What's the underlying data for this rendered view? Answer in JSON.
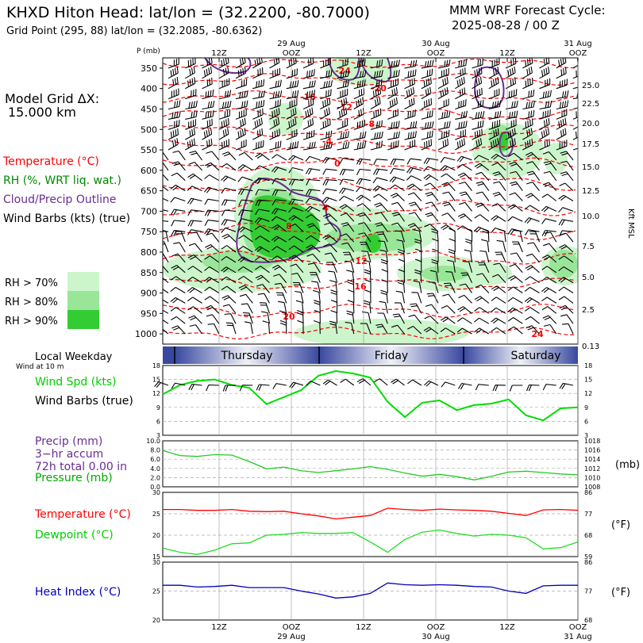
{
  "header": {
    "title": "KHXD Hiton Head:  lat/lon = (32.2200, -80.7000)",
    "subtitle": "Grid Point (295, 88) lat/lon = (32.2085, -80.6362)",
    "cycle_line1": "MMM WRF Forecast Cycle:",
    "cycle_line2": "2025-08-28 / 00  Z"
  },
  "left_panel": {
    "grid_title": "Model Grid ΔX:",
    "grid_value": "15.000 km",
    "legend_temperature": "Temperature (°C)",
    "legend_rh": "RH (%, WRT liq. wat.)",
    "legend_cloud": "Cloud/Precip Outline",
    "legend_wind": "Wind Barbs (kts) (true)",
    "rh_70": "RH > 70%",
    "rh_80": "RH > 80%",
    "rh_90": "RH > 90%",
    "weekday_title": "Local Weekday",
    "weekday_sub": "Wind at 10 m",
    "wind_spd": "Wind Spd (kts)",
    "wind_barbs": "Wind Barbs (true)",
    "precip_title": "Precip (mm)",
    "precip_accum": "3−hr accum",
    "precip_total": "72h total 0.00 in",
    "pressure_label": "Pressure (mb)",
    "temperature_label": "Temperature (°C)",
    "dewpoint_label": "Dewpoint (°C)",
    "heat_index_label": "Heat Index (°C)"
  },
  "right_units": {
    "kft": "Kft MSL",
    "mb": "(mb)",
    "deg_f_1": "(°F)",
    "deg_f_2": "(°F)"
  },
  "top_axis": {
    "pressure_unit": "P (mb)",
    "dates": [
      "29 Aug",
      "30 Aug",
      "31 Aug"
    ],
    "times": [
      "12Z",
      "OOZ",
      "12Z",
      "OOZ",
      "12Z",
      "OOZ"
    ]
  },
  "bottom_axis": {
    "times": [
      "12Z",
      "OOZ",
      "12Z",
      "OOZ",
      "12Z",
      "OOZ"
    ],
    "dates": [
      "29 Aug",
      "30 Aug",
      "31 Aug"
    ]
  },
  "weekday_bar": [
    "Thursday",
    "Friday",
    "Saturday"
  ],
  "colors": {
    "temperature": "#ff0000",
    "rh_70": "#ccf5cc",
    "rh_80": "#99e699",
    "rh_90": "#33cc33",
    "cloud": "#6a2c91",
    "wind": "#00dd00",
    "pressure": "#22cc22",
    "heat_index": "#0000bb",
    "weekday_dark": "#3848a0"
  },
  "chart_data": [
    {
      "type": "heatmap",
      "title": "",
      "ylabel": "P (mb)",
      "yticks": [
        "350",
        "400",
        "450",
        "500",
        "550",
        "600",
        "650",
        "700",
        "750",
        "800",
        "850",
        "900",
        "950",
        "1000"
      ],
      "height_ticks_kft": [
        "25.0",
        "22.5",
        "20.0",
        "17.5",
        "15.0",
        "12.5",
        "10.0",
        "7.5",
        "5.0",
        "2.5",
        "0.13"
      ],
      "temperature_contour_labels": [
        "-24",
        "-20",
        "-16",
        "-12",
        "-8",
        "-4",
        "0",
        "4",
        "8",
        "12",
        "16",
        "20",
        "24"
      ],
      "ylim": [
        1025,
        325
      ]
    },
    {
      "type": "line",
      "title": "",
      "ylim": [
        3,
        18
      ],
      "yticks_left": [
        "18",
        "15",
        "12",
        "9",
        "6",
        "3"
      ],
      "yticks_right": [
        "18",
        "15",
        "12",
        "9",
        "6",
        "3"
      ],
      "series": [
        {
          "name": "Wind Spd (kts)",
          "color": "#00dd00",
          "x": [
            0,
            3,
            6,
            9,
            12,
            15,
            18,
            21,
            24,
            27,
            30,
            33,
            36,
            39,
            42,
            45,
            48,
            51,
            54,
            57,
            60,
            63,
            66,
            69,
            72
          ],
          "values": [
            11.8,
            13.8,
            14.7,
            15.0,
            13.8,
            13.2,
            9.7,
            11.2,
            12.7,
            15.8,
            16.8,
            16.3,
            15.4,
            10.2,
            6.9,
            10.0,
            10.5,
            8.4,
            9.5,
            9.8,
            10.7,
            7.3,
            6.2,
            8.8,
            9.0
          ]
        }
      ]
    },
    {
      "type": "line",
      "title": "",
      "ylim": [
        0,
        10
      ],
      "yticks_left": [
        "10.0",
        "8.0",
        "6.0",
        "4.0",
        "2.0",
        "0.0"
      ],
      "yticks_right": [
        "1018",
        "1016",
        "1014",
        "1012",
        "1010",
        "1008"
      ],
      "series": [
        {
          "name": "Pressure (mb)",
          "color": "#22cc22",
          "x": [
            0,
            3,
            6,
            9,
            12,
            15,
            18,
            21,
            24,
            27,
            30,
            33,
            36,
            39,
            42,
            45,
            48,
            51,
            54,
            57,
            60,
            63,
            66,
            69,
            72
          ],
          "values": [
            1015.9,
            1014.8,
            1014.6,
            1015.0,
            1014.9,
            1013.5,
            1011.9,
            1012.3,
            1011.5,
            1011.1,
            1011.5,
            1011.9,
            1012.4,
            1011.8,
            1011.0,
            1010.3,
            1010.7,
            1010.2,
            1009.5,
            1010.3,
            1011.2,
            1011.4,
            1011.1,
            1010.8,
            1010.6
          ]
        }
      ]
    },
    {
      "type": "line",
      "title": "",
      "ylim": [
        15,
        30
      ],
      "yticks_left": [
        "30",
        "25",
        "20",
        "15"
      ],
      "yticks_right": [
        "86",
        "77",
        "68",
        "59"
      ],
      "series": [
        {
          "name": "Temperature (°C)",
          "color": "#ff0000",
          "x": [
            0,
            3,
            6,
            9,
            12,
            15,
            18,
            21,
            24,
            27,
            30,
            33,
            36,
            39,
            42,
            45,
            48,
            51,
            54,
            57,
            60,
            63,
            66,
            69,
            72
          ],
          "values": [
            26.0,
            26.0,
            25.8,
            25.8,
            26.0,
            25.6,
            25.5,
            25.6,
            25.0,
            24.5,
            23.8,
            24.2,
            24.6,
            26.3,
            26.0,
            25.8,
            26.1,
            25.9,
            25.8,
            25.6,
            25.1,
            24.6,
            25.9,
            26.0,
            25.8
          ]
        },
        {
          "name": "Dewpoint (°C)",
          "color": "#22dd22",
          "x": [
            0,
            3,
            6,
            9,
            12,
            15,
            18,
            21,
            24,
            27,
            30,
            33,
            36,
            39,
            42,
            45,
            48,
            51,
            54,
            57,
            60,
            63,
            66,
            69,
            72
          ],
          "values": [
            17.0,
            16.0,
            15.5,
            16.5,
            18.0,
            18.2,
            20.0,
            20.2,
            20.6,
            20.4,
            20.4,
            20.6,
            18.4,
            16.0,
            19.0,
            20.7,
            21.2,
            20.4,
            19.8,
            20.2,
            20.0,
            19.4,
            16.8,
            17.1,
            18.4
          ]
        }
      ]
    },
    {
      "type": "line",
      "title": "",
      "ylim": [
        20,
        30
      ],
      "yticks_left": [
        "30",
        "25",
        "20"
      ],
      "yticks_right": [
        "86",
        "77",
        "68"
      ],
      "series": [
        {
          "name": "Heat Index (°C)",
          "color": "#0000bb",
          "x": [
            0,
            3,
            6,
            9,
            12,
            15,
            18,
            21,
            24,
            27,
            30,
            33,
            36,
            39,
            42,
            45,
            48,
            51,
            54,
            57,
            60,
            63,
            66,
            69,
            72
          ],
          "values": [
            26.0,
            26.0,
            25.7,
            25.8,
            26.0,
            25.6,
            25.6,
            25.6,
            25.0,
            24.5,
            23.8,
            24.0,
            24.6,
            26.4,
            26.1,
            26.0,
            26.1,
            26.0,
            25.8,
            25.7,
            25.0,
            24.6,
            25.9,
            26.0,
            26.0
          ]
        }
      ]
    }
  ]
}
